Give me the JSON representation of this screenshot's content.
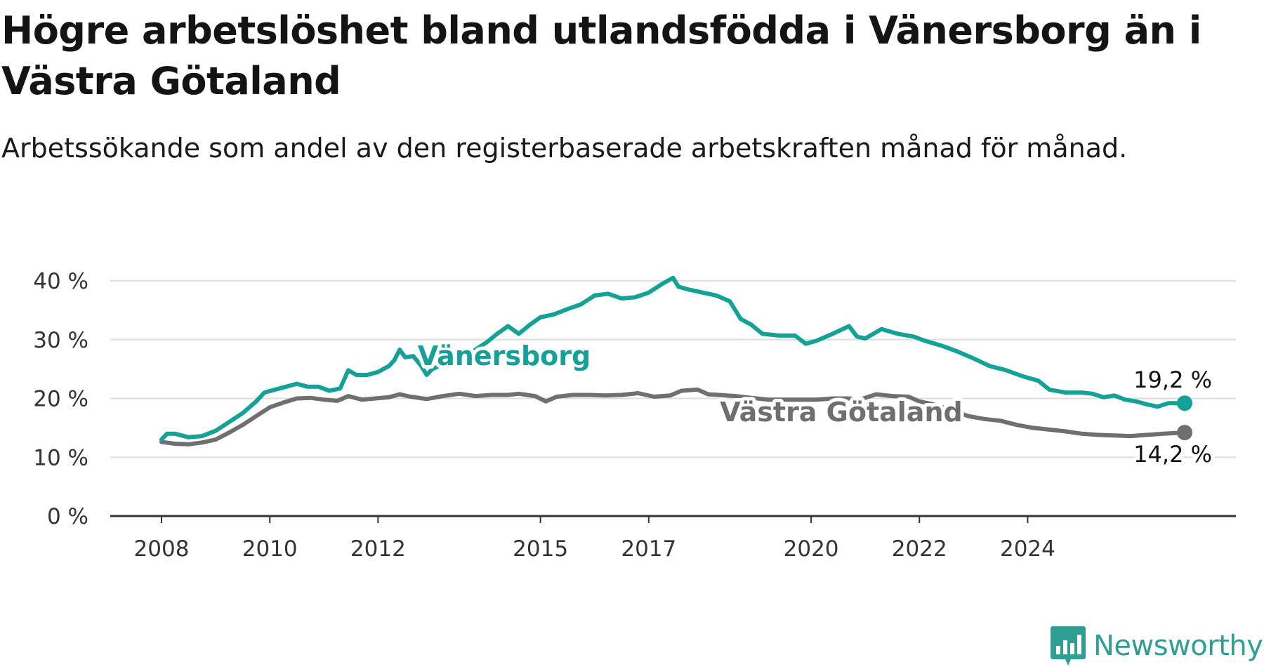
{
  "title": "Högre arbetslöshet bland utlandsfödda i Vänersborg än i Västra Götaland",
  "subtitle": "Arbetssökande som andel av den registerbaserade arbetskraften månad för månad.",
  "brand": {
    "name": "Newsworthy",
    "icon": "bar-chart-badge-icon",
    "color": "#2f9e93"
  },
  "chart_data": {
    "type": "line",
    "title": "Högre arbetslöshet bland utlandsfödda i Vänersborg än i Västra Götaland",
    "subtitle": "Arbetssökande som andel av den registerbaserade arbetskraften månad för månad.",
    "xlabel": "",
    "ylabel": "",
    "x_ticks": [
      "2008",
      "2010",
      "2012",
      "2015",
      "2017",
      "2020",
      "2022",
      "2024"
    ],
    "y_ticks": [
      "0 %",
      "10 %",
      "20 %",
      "30 %",
      "40 %"
    ],
    "ylim": [
      0,
      40
    ],
    "grid": true,
    "series": [
      {
        "name": "Vänersborg",
        "color": "#13a198",
        "end_label": "19,2 %",
        "points": [
          [
            2008.0,
            13.0
          ],
          [
            2008.1,
            14.0
          ],
          [
            2008.25,
            14.0
          ],
          [
            2008.5,
            13.4
          ],
          [
            2008.75,
            13.6
          ],
          [
            2009.0,
            14.5
          ],
          [
            2009.25,
            16.0
          ],
          [
            2009.5,
            17.5
          ],
          [
            2009.75,
            19.5
          ],
          [
            2009.9,
            21.0
          ],
          [
            2010.1,
            21.5
          ],
          [
            2010.3,
            22.0
          ],
          [
            2010.5,
            22.5
          ],
          [
            2010.7,
            22.0
          ],
          [
            2010.9,
            22.0
          ],
          [
            2011.1,
            21.3
          ],
          [
            2011.3,
            21.7
          ],
          [
            2011.45,
            24.8
          ],
          [
            2011.6,
            24.0
          ],
          [
            2011.8,
            24.0
          ],
          [
            2012.0,
            24.5
          ],
          [
            2012.2,
            25.5
          ],
          [
            2012.3,
            26.5
          ],
          [
            2012.4,
            28.3
          ],
          [
            2012.5,
            27.0
          ],
          [
            2012.65,
            27.2
          ],
          [
            2012.8,
            25.5
          ],
          [
            2012.9,
            24.0
          ],
          [
            2013.0,
            25.0
          ],
          [
            2013.25,
            26.0
          ],
          [
            2013.5,
            27.0
          ],
          [
            2013.75,
            28.0
          ],
          [
            2014.0,
            29.5
          ],
          [
            2014.2,
            31.0
          ],
          [
            2014.4,
            32.3
          ],
          [
            2014.6,
            31.0
          ],
          [
            2014.8,
            32.5
          ],
          [
            2015.0,
            33.8
          ],
          [
            2015.25,
            34.3
          ],
          [
            2015.5,
            35.2
          ],
          [
            2015.75,
            36.0
          ],
          [
            2016.0,
            37.5
          ],
          [
            2016.25,
            37.8
          ],
          [
            2016.5,
            37.0
          ],
          [
            2016.75,
            37.2
          ],
          [
            2017.0,
            38.0
          ],
          [
            2017.25,
            39.5
          ],
          [
            2017.45,
            40.5
          ],
          [
            2017.55,
            39.0
          ],
          [
            2017.75,
            38.5
          ],
          [
            2018.0,
            38.0
          ],
          [
            2018.25,
            37.5
          ],
          [
            2018.5,
            36.5
          ],
          [
            2018.7,
            33.5
          ],
          [
            2018.9,
            32.5
          ],
          [
            2019.1,
            31.0
          ],
          [
            2019.4,
            30.7
          ],
          [
            2019.7,
            30.7
          ],
          [
            2019.9,
            29.3
          ],
          [
            2020.1,
            29.8
          ],
          [
            2020.4,
            31.0
          ],
          [
            2020.7,
            32.3
          ],
          [
            2020.85,
            30.5
          ],
          [
            2021.0,
            30.2
          ],
          [
            2021.3,
            31.8
          ],
          [
            2021.6,
            31.0
          ],
          [
            2021.9,
            30.5
          ],
          [
            2022.1,
            29.8
          ],
          [
            2022.4,
            29.0
          ],
          [
            2022.7,
            28.0
          ],
          [
            2023.0,
            26.8
          ],
          [
            2023.3,
            25.5
          ],
          [
            2023.6,
            24.8
          ],
          [
            2023.9,
            23.8
          ],
          [
            2024.2,
            23.0
          ],
          [
            2024.4,
            21.5
          ],
          [
            2024.7,
            21.0
          ],
          [
            2025.0,
            21.0
          ],
          [
            2025.2,
            20.8
          ],
          [
            2025.4,
            20.2
          ],
          [
            2025.6,
            20.5
          ],
          [
            2025.8,
            19.8
          ],
          [
            2026.0,
            19.5
          ],
          [
            2026.2,
            19.0
          ],
          [
            2026.4,
            18.6
          ],
          [
            2026.6,
            19.2
          ],
          [
            2026.9,
            19.2
          ]
        ]
      },
      {
        "name": "Västra Götaland",
        "color": "#6f6e72",
        "end_label": "14,2 %",
        "points": [
          [
            2008.0,
            12.6
          ],
          [
            2008.25,
            12.3
          ],
          [
            2008.5,
            12.2
          ],
          [
            2008.75,
            12.5
          ],
          [
            2009.0,
            13.0
          ],
          [
            2009.25,
            14.2
          ],
          [
            2009.5,
            15.5
          ],
          [
            2009.75,
            17.0
          ],
          [
            2010.0,
            18.5
          ],
          [
            2010.25,
            19.3
          ],
          [
            2010.5,
            20.0
          ],
          [
            2010.75,
            20.1
          ],
          [
            2011.0,
            19.8
          ],
          [
            2011.25,
            19.6
          ],
          [
            2011.45,
            20.4
          ],
          [
            2011.7,
            19.8
          ],
          [
            2011.95,
            20.0
          ],
          [
            2012.2,
            20.2
          ],
          [
            2012.4,
            20.7
          ],
          [
            2012.6,
            20.3
          ],
          [
            2012.9,
            19.9
          ],
          [
            2013.2,
            20.4
          ],
          [
            2013.5,
            20.8
          ],
          [
            2013.8,
            20.4
          ],
          [
            2014.1,
            20.6
          ],
          [
            2014.4,
            20.6
          ],
          [
            2014.6,
            20.8
          ],
          [
            2014.9,
            20.4
          ],
          [
            2015.1,
            19.5
          ],
          [
            2015.3,
            20.3
          ],
          [
            2015.6,
            20.6
          ],
          [
            2015.9,
            20.6
          ],
          [
            2016.2,
            20.5
          ],
          [
            2016.5,
            20.6
          ],
          [
            2016.8,
            20.9
          ],
          [
            2017.1,
            20.3
          ],
          [
            2017.4,
            20.5
          ],
          [
            2017.6,
            21.3
          ],
          [
            2017.9,
            21.5
          ],
          [
            2018.1,
            20.7
          ],
          [
            2018.3,
            20.6
          ],
          [
            2018.6,
            20.4
          ],
          [
            2018.9,
            20.1
          ],
          [
            2019.2,
            19.8
          ],
          [
            2019.5,
            19.8
          ],
          [
            2019.8,
            19.8
          ],
          [
            2020.1,
            19.8
          ],
          [
            2020.4,
            20.0
          ],
          [
            2020.7,
            20.0
          ],
          [
            2020.9,
            19.8
          ],
          [
            2021.2,
            20.7
          ],
          [
            2021.5,
            20.4
          ],
          [
            2021.8,
            20.3
          ],
          [
            2022.0,
            19.5
          ],
          [
            2022.3,
            18.9
          ],
          [
            2022.6,
            18.0
          ],
          [
            2022.9,
            17.0
          ],
          [
            2023.2,
            16.5
          ],
          [
            2023.5,
            16.2
          ],
          [
            2023.8,
            15.5
          ],
          [
            2024.1,
            15.0
          ],
          [
            2024.4,
            14.7
          ],
          [
            2024.7,
            14.4
          ],
          [
            2025.0,
            14.0
          ],
          [
            2025.3,
            13.8
          ],
          [
            2025.6,
            13.7
          ],
          [
            2025.9,
            13.6
          ],
          [
            2026.2,
            13.8
          ],
          [
            2026.5,
            14.0
          ],
          [
            2026.9,
            14.2
          ]
        ]
      }
    ]
  }
}
